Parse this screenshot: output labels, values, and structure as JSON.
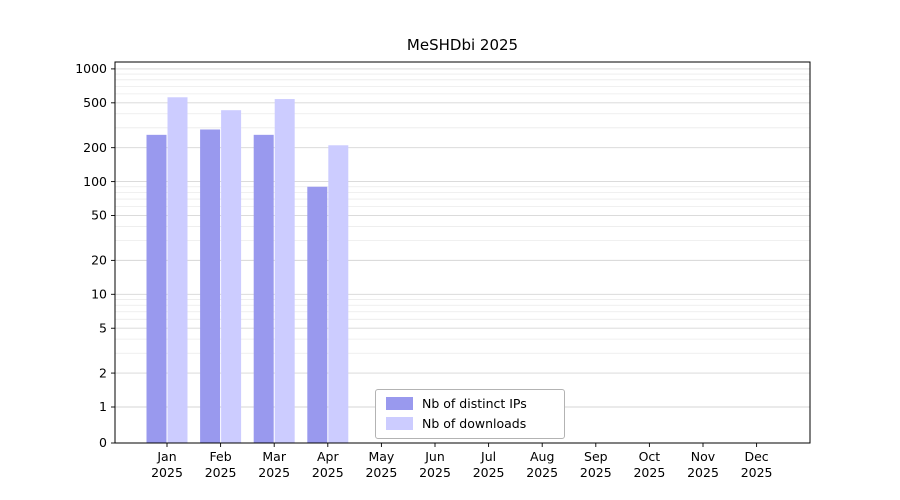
{
  "chart_data": {
    "type": "bar",
    "title": "MeSHDbi 2025",
    "categories": [
      "Jan",
      "Feb",
      "Mar",
      "Apr",
      "May",
      "Jun",
      "Jul",
      "Aug",
      "Sep",
      "Oct",
      "Nov",
      "Dec"
    ],
    "year_label": "2025",
    "series": [
      {
        "name": "Nb of distinct IPs",
        "color": "#9999ee",
        "values": [
          260,
          290,
          260,
          90,
          0,
          0,
          0,
          0,
          0,
          0,
          0,
          0
        ]
      },
      {
        "name": "Nb of downloads",
        "color": "#ccccff",
        "values": [
          560,
          430,
          540,
          210,
          0,
          0,
          0,
          0,
          0,
          0,
          0,
          0
        ]
      }
    ],
    "yscale": "symlog",
    "y_ticks": [
      0,
      1,
      2,
      5,
      10,
      20,
      50,
      100,
      200,
      500,
      1000
    ],
    "ylim": [
      0,
      1150
    ],
    "grid": true,
    "legend_position": "lower center",
    "background": "#ffffff",
    "grid_color": "#d6d6d6",
    "minor_grid_color": "#ebebeb",
    "spine_color": "#000000"
  }
}
